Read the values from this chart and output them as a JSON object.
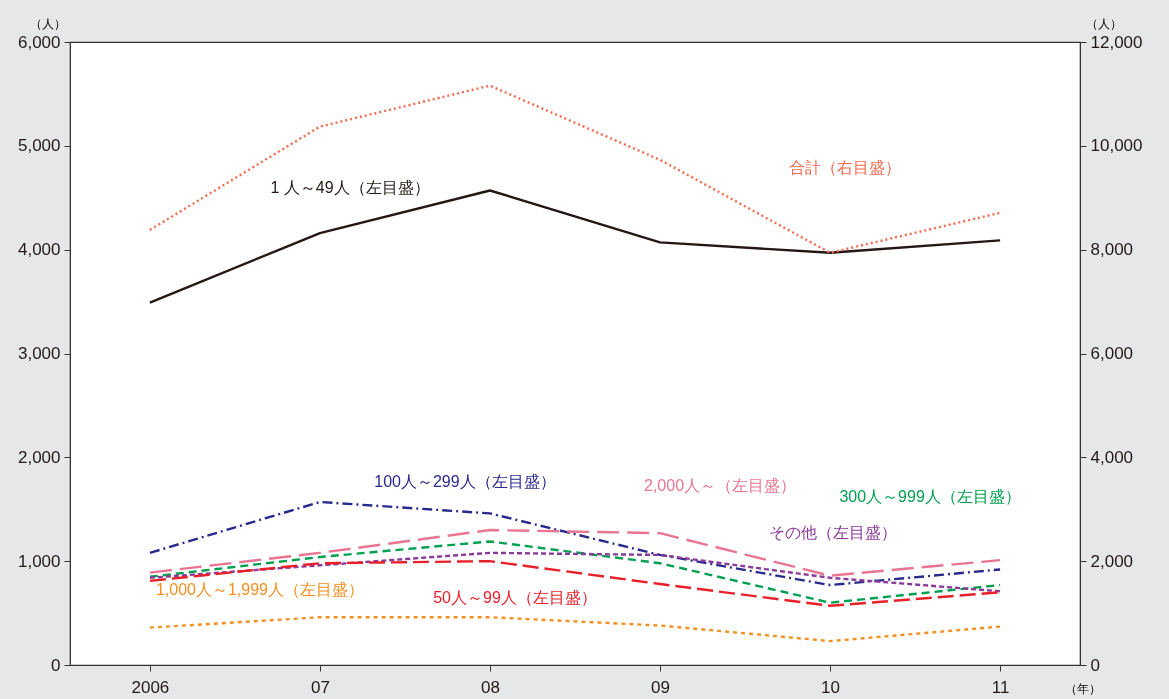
{
  "chart_data": {
    "type": "line",
    "categories": [
      "2006",
      "07",
      "08",
      "09",
      "10",
      "11"
    ],
    "xlabel": "（年）",
    "ylabel": "（人）",
    "y2label": "（人）",
    "ylim": [
      0,
      6000
    ],
    "yticks": [
      0,
      {
        "value": 1000,
        "label": "1,000"
      },
      {
        "value": 2000,
        "label": "2,000"
      },
      {
        "value": 3000,
        "label": "3,000"
      },
      {
        "value": 4000,
        "label": "4,000"
      },
      {
        "value": 5000,
        "label": "5,000"
      },
      {
        "value": 6000,
        "label": "6,000"
      }
    ],
    "y2lim": [
      0,
      12000
    ],
    "y2ticks": [
      0,
      {
        "value": 2000,
        "label": "2,000"
      },
      {
        "value": 4000,
        "label": "4,000"
      },
      {
        "value": 6000,
        "label": "6,000"
      },
      {
        "value": 8000,
        "label": "8,000"
      },
      {
        "value": 10000,
        "label": "10,000"
      },
      {
        "value": 12000,
        "label": "12,000"
      }
    ],
    "series": [
      {
        "name": "1 人～49人（左目盛）",
        "color": "#231815",
        "line_style": "solid",
        "values": [
          3490,
          4160,
          4570,
          4070,
          3970,
          4090
        ]
      },
      {
        "name": "合計（右目盛）",
        "color": "#f26a4f",
        "line_style": "dotted",
        "axis": "y2",
        "values": [
          8380,
          10370,
          11160,
          9730,
          7940,
          8710
        ]
      },
      {
        "name": "100人～299人（左目盛）",
        "color": "#2a2a8c",
        "line_style": "dashed",
        "values": [
          1080,
          1570,
          1460,
          1060,
          770,
          920
        ]
      },
      {
        "name": "2,000人～（左目盛）",
        "color": "#ea7593",
        "line_style": "dashed",
        "values": [
          890,
          1080,
          1300,
          1270,
          860,
          1010
        ]
      },
      {
        "name": "300人～999人（左目盛）",
        "color": "#00a050",
        "line_style": "dashed",
        "values": [
          850,
          1040,
          1190,
          980,
          600,
          770
        ]
      },
      {
        "name": "その他（左目盛）",
        "color": "#8a3a9a",
        "line_style": "dashed",
        "values": [
          840,
          960,
          1080,
          1060,
          840,
          710
        ]
      },
      {
        "name": "50人～99人（左目盛）",
        "color": "#e8202a",
        "line_style": "dashed",
        "values": [
          810,
          980,
          1000,
          780,
          570,
          700
        ]
      },
      {
        "name": "1,000人～1,999人（左目盛）",
        "color": "#f39020",
        "line_style": "dashed",
        "values": [
          360,
          460,
          460,
          380,
          230,
          370
        ]
      }
    ]
  }
}
